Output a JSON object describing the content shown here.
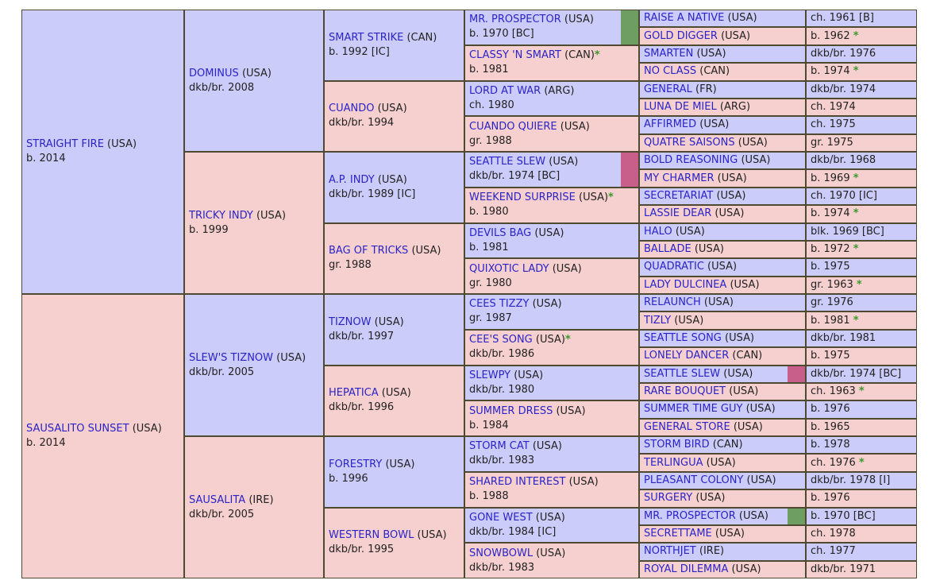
{
  "pedigree": {
    "gen1": [
      {
        "name": "STRAIGHT FIRE",
        "origin": "(USA)",
        "info": "b. 2014"
      },
      {
        "name": "SAUSALITO SUNSET",
        "origin": "(USA)",
        "info": "b. 2014"
      }
    ],
    "gen2": [
      {
        "name": "DOMINUS",
        "origin": "(USA)",
        "info": "dkb/br. 2008"
      },
      {
        "name": "TRICKY INDY",
        "origin": "(USA)",
        "info": "b. 1999"
      },
      {
        "name": "SLEW'S TIZNOW",
        "origin": "(USA)",
        "info": "dkb/br. 2005"
      },
      {
        "name": "SAUSALITA",
        "origin": "(IRE)",
        "info": "dkb/br. 2005"
      }
    ],
    "gen3": [
      {
        "name": "SMART STRIKE",
        "origin": "(CAN)",
        "info": "b. 1992 [IC]"
      },
      {
        "name": "CUANDO",
        "origin": "(USA)",
        "info": "dkb/br. 1994"
      },
      {
        "name": "A.P. INDY",
        "origin": "(USA)",
        "info": "dkb/br. 1989 [IC]"
      },
      {
        "name": "BAG OF TRICKS",
        "origin": "(USA)",
        "info": "gr. 1988"
      },
      {
        "name": "TIZNOW",
        "origin": "(USA)",
        "info": "dkb/br. 1997"
      },
      {
        "name": "HEPATICA",
        "origin": "(USA)",
        "info": "dkb/br. 1996"
      },
      {
        "name": "FORESTRY",
        "origin": "(USA)",
        "info": "b. 1996"
      },
      {
        "name": "WESTERN BOWL",
        "origin": "(USA)",
        "info": "dkb/br. 1995"
      }
    ],
    "gen4": [
      {
        "name": "MR. PROSPECTOR",
        "origin": "(USA)",
        "info": "b. 1970 [BC]",
        "marker": "#6e9e62"
      },
      {
        "name": "CLASSY 'N SMART",
        "origin": "(CAN)",
        "info": "b. 1981",
        "star": "*"
      },
      {
        "name": "LORD AT WAR",
        "origin": "(ARG)",
        "info": "ch. 1980"
      },
      {
        "name": "CUANDO QUIERE",
        "origin": "(USA)",
        "info": "gr. 1988"
      },
      {
        "name": "SEATTLE SLEW",
        "origin": "(USA)",
        "info": "dkb/br. 1974 [BC]",
        "marker": "#c85f8a"
      },
      {
        "name": "WEEKEND SURPRISE",
        "origin": "(USA)",
        "info": "b. 1980",
        "star": "*"
      },
      {
        "name": "DEVILS BAG",
        "origin": "(USA)",
        "info": "b. 1981"
      },
      {
        "name": "QUIXOTIC LADY",
        "origin": "(USA)",
        "info": "gr. 1980"
      },
      {
        "name": "CEES TIZZY",
        "origin": "(USA)",
        "info": "gr. 1987"
      },
      {
        "name": "CEE'S SONG",
        "origin": "(USA)",
        "info": "dkb/br. 1986",
        "star": "*"
      },
      {
        "name": "SLEWPY",
        "origin": "(USA)",
        "info": "dkb/br. 1980"
      },
      {
        "name": "SUMMER DRESS",
        "origin": "(USA)",
        "info": "b. 1984"
      },
      {
        "name": "STORM CAT",
        "origin": "(USA)",
        "info": "dkb/br. 1983"
      },
      {
        "name": "SHARED INTEREST",
        "origin": "(USA)",
        "info": "b. 1988"
      },
      {
        "name": "GONE WEST",
        "origin": "(USA)",
        "info": "dkb/br. 1984 [IC]"
      },
      {
        "name": "SNOWBOWL",
        "origin": "(USA)",
        "info": "dkb/br. 1983"
      }
    ],
    "gen5": [
      {
        "name": "RAISE A NATIVE",
        "origin": "(USA)",
        "info": "ch. 1961 [B]"
      },
      {
        "name": "GOLD DIGGER",
        "origin": "(USA)",
        "info": "b. 1962",
        "star": "*"
      },
      {
        "name": "SMARTEN",
        "origin": "(USA)",
        "info": "dkb/br. 1976"
      },
      {
        "name": "NO CLASS",
        "origin": "(CAN)",
        "info": "b. 1974",
        "star": "*"
      },
      {
        "name": "GENERAL",
        "origin": "(FR)",
        "info": "dkb/br. 1974"
      },
      {
        "name": "LUNA DE MIEL",
        "origin": "(ARG)",
        "info": "ch. 1974"
      },
      {
        "name": "AFFIRMED",
        "origin": "(USA)",
        "info": "ch. 1975"
      },
      {
        "name": "QUATRE SAISONS",
        "origin": "(USA)",
        "info": "gr. 1975"
      },
      {
        "name": "BOLD REASONING",
        "origin": "(USA)",
        "info": "dkb/br. 1968"
      },
      {
        "name": "MY CHARMER",
        "origin": "(USA)",
        "info": "b. 1969",
        "star": "*"
      },
      {
        "name": "SECRETARIAT",
        "origin": "(USA)",
        "info": "ch. 1970 [IC]"
      },
      {
        "name": "LASSIE DEAR",
        "origin": "(USA)",
        "info": "b. 1974",
        "star": "*"
      },
      {
        "name": "HALO",
        "origin": "(USA)",
        "info": "blk. 1969 [BC]"
      },
      {
        "name": "BALLADE",
        "origin": "(USA)",
        "info": "b. 1972",
        "star": "*"
      },
      {
        "name": "QUADRATIC",
        "origin": "(USA)",
        "info": "b. 1975"
      },
      {
        "name": "LADY DULCINEA",
        "origin": "(USA)",
        "info": "gr. 1963",
        "star": "*"
      },
      {
        "name": "RELAUNCH",
        "origin": "(USA)",
        "info": "gr. 1976"
      },
      {
        "name": "TIZLY",
        "origin": "(USA)",
        "info": "b. 1981",
        "star": "*"
      },
      {
        "name": "SEATTLE SONG",
        "origin": "(USA)",
        "info": "dkb/br. 1981"
      },
      {
        "name": "LONELY DANCER",
        "origin": "(CAN)",
        "info": "b. 1975"
      },
      {
        "name": "SEATTLE SLEW",
        "origin": "(USA)",
        "info": "dkb/br. 1974 [BC]",
        "marker": "#c85f8a"
      },
      {
        "name": "RARE BOUQUET",
        "origin": "(USA)",
        "info": "ch. 1963",
        "star": "*"
      },
      {
        "name": "SUMMER TIME GUY",
        "origin": "(USA)",
        "info": "b. 1976"
      },
      {
        "name": "GENERAL STORE",
        "origin": "(USA)",
        "info": "b. 1965"
      },
      {
        "name": "STORM BIRD",
        "origin": "(CAN)",
        "info": "b. 1978"
      },
      {
        "name": "TERLINGUA",
        "origin": "(USA)",
        "info": "ch. 1976",
        "star": "*"
      },
      {
        "name": "PLEASANT COLONY",
        "origin": "(USA)",
        "info": "dkb/br. 1978 [I]"
      },
      {
        "name": "SURGERY",
        "origin": "(USA)",
        "info": "b. 1976"
      },
      {
        "name": "MR. PROSPECTOR",
        "origin": "(USA)",
        "info": "b. 1970 [BC]",
        "marker": "#6e9e62"
      },
      {
        "name": "SECRETTAME",
        "origin": "(USA)",
        "info": "ch. 1978"
      },
      {
        "name": "NORTHJET",
        "origin": "(IRE)",
        "info": "ch. 1977"
      },
      {
        "name": "ROYAL DILEMMA",
        "origin": "(USA)",
        "info": "dkb/br. 1971"
      }
    ]
  }
}
